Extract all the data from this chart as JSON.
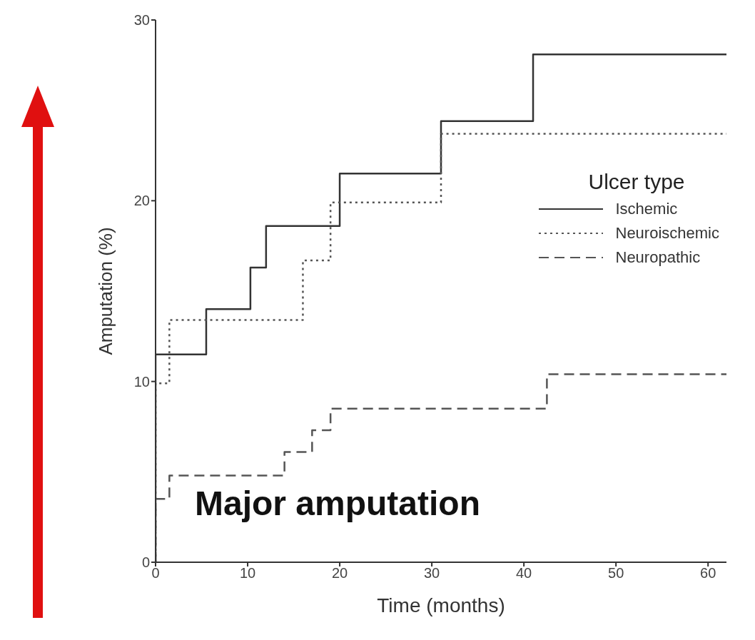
{
  "chart_data": {
    "type": "step",
    "xlabel": "Time (months)",
    "ylabel": "Amputation (%)",
    "legend_title": "Ulcer type",
    "annotations": [
      "Major amputation"
    ],
    "xlim": [
      0,
      62
    ],
    "xticks": [
      0,
      10,
      20,
      30,
      40,
      50,
      60
    ],
    "ylim": [
      0,
      30
    ],
    "yticks": [
      0,
      10,
      20,
      30
    ],
    "grid": false,
    "legend": "right",
    "marker": "none",
    "series": [
      {
        "name": "Ischemic",
        "color": "#333333",
        "line_style": "solid",
        "x": [
          0,
          0,
          5.5,
          10.3,
          12,
          20,
          31,
          41,
          62
        ],
        "values": [
          0,
          11.5,
          14,
          16.3,
          18.6,
          21.5,
          24.4,
          28.1,
          28.1
        ]
      },
      {
        "name": "Neuroischemic",
        "color": "#555555",
        "line_style": "dotted",
        "x": [
          0,
          0,
          1.5,
          16,
          19,
          31,
          62
        ],
        "values": [
          0,
          9.9,
          13.4,
          16.7,
          19.9,
          23.7,
          23.7
        ]
      },
      {
        "name": "Neuropathic",
        "color": "#555555",
        "line_style": "dashed",
        "x": [
          0,
          0,
          1.5,
          14,
          17,
          19,
          42.5,
          62
        ],
        "values": [
          0,
          3.5,
          4.8,
          6.1,
          7.3,
          8.5,
          10.4,
          10.4
        ]
      }
    ]
  }
}
